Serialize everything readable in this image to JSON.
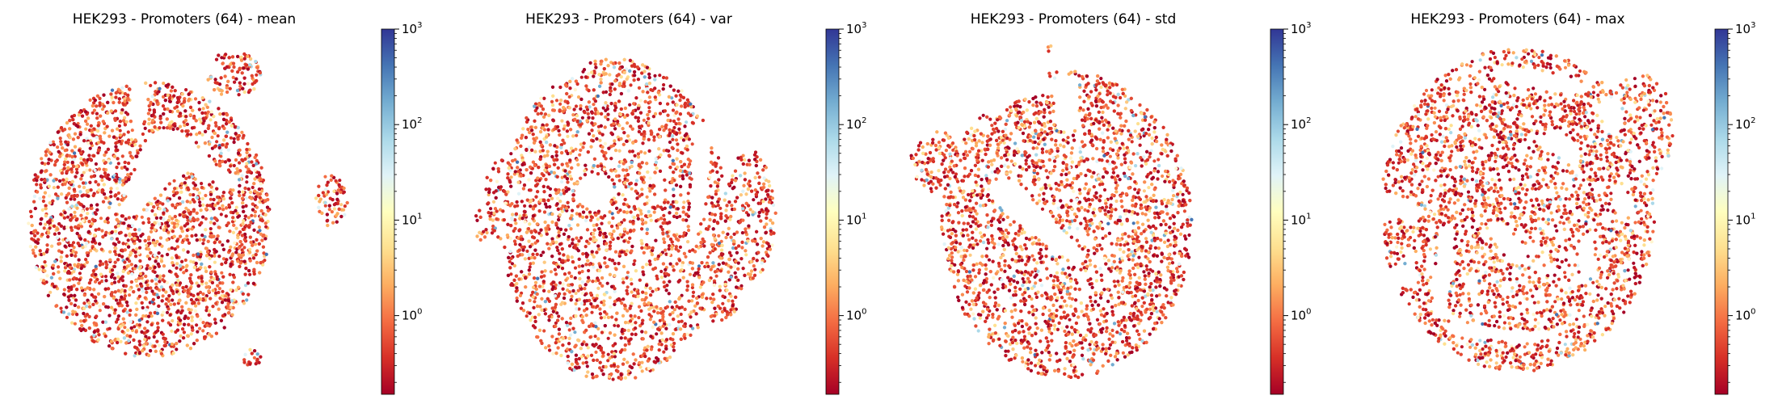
{
  "chart_data": [
    {
      "type": "scatter",
      "title": "HEK293 - Promoters (64) - mean",
      "xlabel": "",
      "ylabel": "",
      "axes_visible": false,
      "shape": "round-blob-with-fork-and-islands",
      "colorbar": {
        "scale": "log",
        "range": [
          0.15,
          1000
        ],
        "colormap": "RdYlBu",
        "ticks": [
          {
            "value": 1,
            "base": "10",
            "exponent": "0"
          },
          {
            "value": 10,
            "base": "10",
            "exponent": "1"
          },
          {
            "value": 100,
            "base": "10",
            "exponent": "2"
          },
          {
            "value": 1000,
            "base": "10",
            "exponent": "3"
          }
        ]
      }
    },
    {
      "type": "scatter",
      "title": "HEK293 - Promoters (64) - var",
      "xlabel": "",
      "ylabel": "",
      "axes_visible": false,
      "shape": "tall-blob-with-side-islands",
      "colorbar": {
        "scale": "log",
        "range": [
          0.15,
          1000
        ],
        "colormap": "RdYlBu",
        "ticks": [
          {
            "value": 1,
            "base": "10",
            "exponent": "0"
          },
          {
            "value": 10,
            "base": "10",
            "exponent": "1"
          },
          {
            "value": 100,
            "base": "10",
            "exponent": "2"
          },
          {
            "value": 1000,
            "base": "10",
            "exponent": "3"
          }
        ]
      }
    },
    {
      "type": "scatter",
      "title": "HEK293 - Promoters (64) - std",
      "xlabel": "",
      "ylabel": "",
      "axes_visible": false,
      "shape": "round-blob-with-diagonal-gap",
      "colorbar": {
        "scale": "log",
        "range": [
          0.15,
          1000
        ],
        "colormap": "RdYlBu",
        "ticks": [
          {
            "value": 1,
            "base": "10",
            "exponent": "0"
          },
          {
            "value": 10,
            "base": "10",
            "exponent": "1"
          },
          {
            "value": 100,
            "base": "10",
            "exponent": "2"
          },
          {
            "value": 1000,
            "base": "10",
            "exponent": "3"
          }
        ]
      }
    },
    {
      "type": "scatter",
      "title": "HEK293 - Promoters (64) - max",
      "xlabel": "",
      "ylabel": "",
      "axes_visible": false,
      "shape": "fragmented-rings",
      "colorbar": {
        "scale": "log",
        "range": [
          0.15,
          1000
        ],
        "colormap": "RdYlBu",
        "ticks": [
          {
            "value": 1,
            "base": "10",
            "exponent": "0"
          },
          {
            "value": 10,
            "base": "10",
            "exponent": "1"
          },
          {
            "value": 100,
            "base": "10",
            "exponent": "2"
          },
          {
            "value": 1000,
            "base": "10",
            "exponent": "3"
          }
        ]
      }
    }
  ]
}
